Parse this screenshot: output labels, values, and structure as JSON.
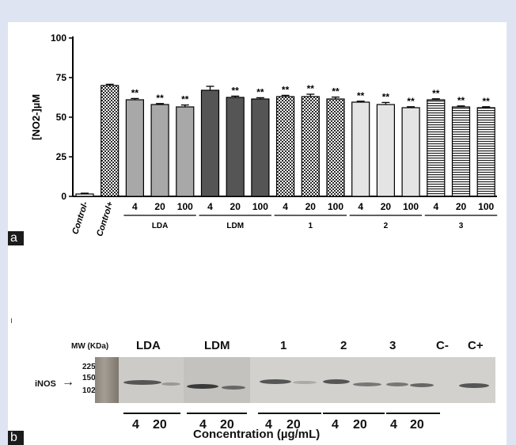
{
  "panel_a_tag": "a",
  "panel_b_tag": "b",
  "chart_data": {
    "type": "bar",
    "ylabel": "[NO2-]µM",
    "ylim": [
      0,
      100
    ],
    "yticks": [
      "0",
      "25",
      "50",
      "75",
      "100"
    ],
    "grid": false,
    "legend": "none",
    "bars": [
      {
        "label": "Control-",
        "value": 1.5,
        "err": 0.5,
        "sig": "",
        "fill": "white"
      },
      {
        "label": "Control+",
        "value": 70,
        "err": 0.8,
        "sig": "",
        "fill": "checker"
      },
      {
        "label": "4",
        "value": 61,
        "err": 0.8,
        "sig": "**",
        "fill": "#a8a8a8"
      },
      {
        "label": "20",
        "value": 58,
        "err": 0.6,
        "sig": "**",
        "fill": "#a8a8a8"
      },
      {
        "label": "100",
        "value": 56.5,
        "err": 1.2,
        "sig": "**",
        "fill": "#a8a8a8"
      },
      {
        "label": "4",
        "value": 67,
        "err": 2.5,
        "sig": "",
        "fill": "#555555"
      },
      {
        "label": "20",
        "value": 62.5,
        "err": 0.8,
        "sig": "**",
        "fill": "#555555"
      },
      {
        "label": "100",
        "value": 61.5,
        "err": 0.8,
        "sig": "**",
        "fill": "#555555"
      },
      {
        "label": "4",
        "value": 63,
        "err": 0.8,
        "sig": "**",
        "fill": "checker"
      },
      {
        "label": "20",
        "value": 63,
        "err": 1.5,
        "sig": "**",
        "fill": "checker"
      },
      {
        "label": "100",
        "value": 61.5,
        "err": 1.2,
        "sig": "**",
        "fill": "checker"
      },
      {
        "label": "4",
        "value": 59.5,
        "err": 0.6,
        "sig": "**",
        "fill": "#e4e4e4"
      },
      {
        "label": "20",
        "value": 58,
        "err": 1.3,
        "sig": "**",
        "fill": "#e4e4e4"
      },
      {
        "label": "100",
        "value": 56,
        "err": 0.6,
        "sig": "**",
        "fill": "#e4e4e4"
      },
      {
        "label": "4",
        "value": 61,
        "err": 0.6,
        "sig": "**",
        "fill": "stripes"
      },
      {
        "label": "20",
        "value": 56.5,
        "err": 0.6,
        "sig": "**",
        "fill": "stripes"
      },
      {
        "label": "100",
        "value": 56,
        "err": 0.6,
        "sig": "**",
        "fill": "stripes"
      }
    ],
    "groups": [
      {
        "label": "LDA",
        "from": 2,
        "to": 4
      },
      {
        "label": "LDM",
        "from": 5,
        "to": 7
      },
      {
        "label": "1",
        "from": 8,
        "to": 10
      },
      {
        "label": "2",
        "from": 11,
        "to": 13
      },
      {
        "label": "3",
        "from": 14,
        "to": 16
      }
    ]
  },
  "blot": {
    "mw_header": "MW (KDa)",
    "markers": [
      "225",
      "150",
      "102"
    ],
    "target_label": "iNOS",
    "arrow": "→",
    "lane_headers": [
      "LDA",
      "LDM",
      "1",
      "2",
      "3",
      "C-",
      "C+"
    ],
    "conc_labels": [
      "4",
      "20",
      "4",
      "20",
      "4",
      "20",
      "4",
      "20",
      "4",
      "20"
    ],
    "xlabel": "Concentration (µg/mL)"
  }
}
